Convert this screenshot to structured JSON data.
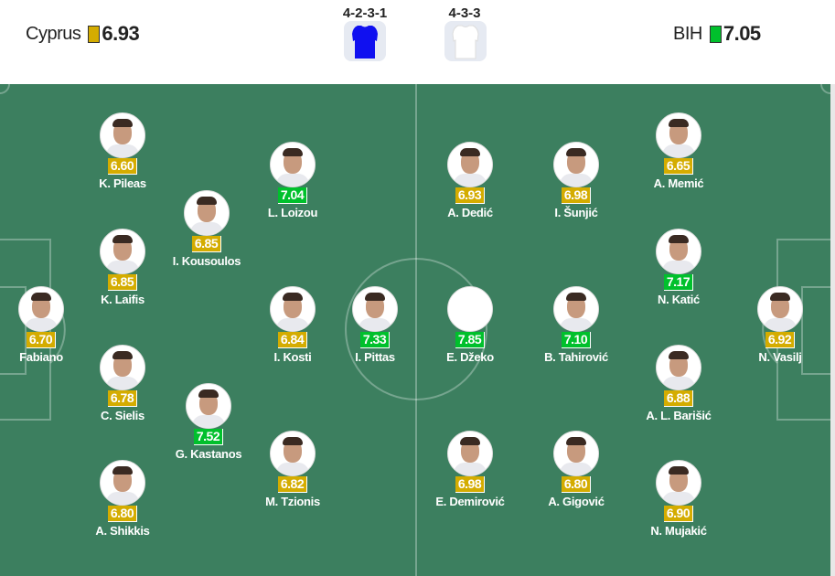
{
  "header": {
    "home": {
      "name": "Cyprus",
      "rating": "6.93",
      "rating_color": "#d4ac00",
      "formation": "4-2-3-1",
      "kit_color": "#1010f0"
    },
    "away": {
      "name": "BIH",
      "rating": "7.05",
      "rating_color": "#00c02c",
      "formation": "4-3-3",
      "kit_color": "#ffffff"
    }
  },
  "colors": {
    "pitch": "#3c7f5f",
    "rating_mid": "#d4ac00",
    "rating_high": "#00c02c"
  },
  "players": [
    {
      "name": "K. Pileas",
      "rating": "6.60",
      "level": "y"
    },
    {
      "name": "L. Loizou",
      "rating": "7.04",
      "level": "g"
    },
    {
      "name": "I. Kousoulos",
      "rating": "6.85",
      "level": "y"
    },
    {
      "name": "K. Laifis",
      "rating": "6.85",
      "level": "y"
    },
    {
      "name": "Fabiano",
      "rating": "6.70",
      "level": "y"
    },
    {
      "name": "I. Kosti",
      "rating": "6.84",
      "level": "y"
    },
    {
      "name": "I. Pittas",
      "rating": "7.33",
      "level": "g"
    },
    {
      "name": "C. Sielis",
      "rating": "6.78",
      "level": "y"
    },
    {
      "name": "G. Kastanos",
      "rating": "7.52",
      "level": "g"
    },
    {
      "name": "M. Tzionis",
      "rating": "6.82",
      "level": "y"
    },
    {
      "name": "A. Shikkis",
      "rating": "6.80",
      "level": "y"
    },
    {
      "name": "A. Dedić",
      "rating": "6.93",
      "level": "y"
    },
    {
      "name": "I. Šunjić",
      "rating": "6.98",
      "level": "y"
    },
    {
      "name": "A. Memić",
      "rating": "6.65",
      "level": "y"
    },
    {
      "name": "N. Katić",
      "rating": "7.17",
      "level": "g"
    },
    {
      "name": "E. Džeko",
      "rating": "7.85",
      "level": "g"
    },
    {
      "name": "B. Tahirović",
      "rating": "7.10",
      "level": "g"
    },
    {
      "name": "N. Vasilj",
      "rating": "6.92",
      "level": "y"
    },
    {
      "name": "A. L. Barišić",
      "rating": "6.88",
      "level": "y"
    },
    {
      "name": "E. Demirović",
      "rating": "6.98",
      "level": "y"
    },
    {
      "name": "A. Gigović",
      "rating": "6.80",
      "level": "y"
    },
    {
      "name": "N. Mujakić",
      "rating": "6.90",
      "level": "y"
    }
  ]
}
